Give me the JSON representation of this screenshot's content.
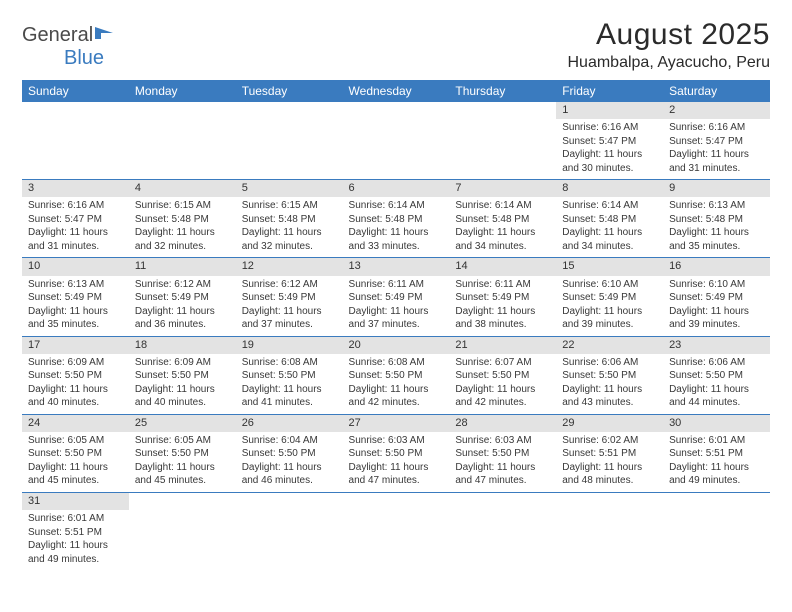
{
  "logo": {
    "text1": "General",
    "text2": "Blue"
  },
  "title": "August 2025",
  "subtitle": "Huambalpa, Ayacucho, Peru",
  "colors": {
    "header_bg": "#3a7bbf",
    "header_fg": "#ffffff",
    "daynum_bg": "#e3e3e3",
    "rule": "#3a7bbf",
    "text": "#383838",
    "logo_gray": "#4a4a4a",
    "logo_blue": "#3a7bbf"
  },
  "weekdays": [
    "Sunday",
    "Monday",
    "Tuesday",
    "Wednesday",
    "Thursday",
    "Friday",
    "Saturday"
  ],
  "weeks": [
    [
      null,
      null,
      null,
      null,
      null,
      {
        "n": "1",
        "sr": "6:16 AM",
        "ss": "5:47 PM",
        "dl": "11 hours and 30 minutes."
      },
      {
        "n": "2",
        "sr": "6:16 AM",
        "ss": "5:47 PM",
        "dl": "11 hours and 31 minutes."
      }
    ],
    [
      {
        "n": "3",
        "sr": "6:16 AM",
        "ss": "5:47 PM",
        "dl": "11 hours and 31 minutes."
      },
      {
        "n": "4",
        "sr": "6:15 AM",
        "ss": "5:48 PM",
        "dl": "11 hours and 32 minutes."
      },
      {
        "n": "5",
        "sr": "6:15 AM",
        "ss": "5:48 PM",
        "dl": "11 hours and 32 minutes."
      },
      {
        "n": "6",
        "sr": "6:14 AM",
        "ss": "5:48 PM",
        "dl": "11 hours and 33 minutes."
      },
      {
        "n": "7",
        "sr": "6:14 AM",
        "ss": "5:48 PM",
        "dl": "11 hours and 34 minutes."
      },
      {
        "n": "8",
        "sr": "6:14 AM",
        "ss": "5:48 PM",
        "dl": "11 hours and 34 minutes."
      },
      {
        "n": "9",
        "sr": "6:13 AM",
        "ss": "5:48 PM",
        "dl": "11 hours and 35 minutes."
      }
    ],
    [
      {
        "n": "10",
        "sr": "6:13 AM",
        "ss": "5:49 PM",
        "dl": "11 hours and 35 minutes."
      },
      {
        "n": "11",
        "sr": "6:12 AM",
        "ss": "5:49 PM",
        "dl": "11 hours and 36 minutes."
      },
      {
        "n": "12",
        "sr": "6:12 AM",
        "ss": "5:49 PM",
        "dl": "11 hours and 37 minutes."
      },
      {
        "n": "13",
        "sr": "6:11 AM",
        "ss": "5:49 PM",
        "dl": "11 hours and 37 minutes."
      },
      {
        "n": "14",
        "sr": "6:11 AM",
        "ss": "5:49 PM",
        "dl": "11 hours and 38 minutes."
      },
      {
        "n": "15",
        "sr": "6:10 AM",
        "ss": "5:49 PM",
        "dl": "11 hours and 39 minutes."
      },
      {
        "n": "16",
        "sr": "6:10 AM",
        "ss": "5:49 PM",
        "dl": "11 hours and 39 minutes."
      }
    ],
    [
      {
        "n": "17",
        "sr": "6:09 AM",
        "ss": "5:50 PM",
        "dl": "11 hours and 40 minutes."
      },
      {
        "n": "18",
        "sr": "6:09 AM",
        "ss": "5:50 PM",
        "dl": "11 hours and 40 minutes."
      },
      {
        "n": "19",
        "sr": "6:08 AM",
        "ss": "5:50 PM",
        "dl": "11 hours and 41 minutes."
      },
      {
        "n": "20",
        "sr": "6:08 AM",
        "ss": "5:50 PM",
        "dl": "11 hours and 42 minutes."
      },
      {
        "n": "21",
        "sr": "6:07 AM",
        "ss": "5:50 PM",
        "dl": "11 hours and 42 minutes."
      },
      {
        "n": "22",
        "sr": "6:06 AM",
        "ss": "5:50 PM",
        "dl": "11 hours and 43 minutes."
      },
      {
        "n": "23",
        "sr": "6:06 AM",
        "ss": "5:50 PM",
        "dl": "11 hours and 44 minutes."
      }
    ],
    [
      {
        "n": "24",
        "sr": "6:05 AM",
        "ss": "5:50 PM",
        "dl": "11 hours and 45 minutes."
      },
      {
        "n": "25",
        "sr": "6:05 AM",
        "ss": "5:50 PM",
        "dl": "11 hours and 45 minutes."
      },
      {
        "n": "26",
        "sr": "6:04 AM",
        "ss": "5:50 PM",
        "dl": "11 hours and 46 minutes."
      },
      {
        "n": "27",
        "sr": "6:03 AM",
        "ss": "5:50 PM",
        "dl": "11 hours and 47 minutes."
      },
      {
        "n": "28",
        "sr": "6:03 AM",
        "ss": "5:50 PM",
        "dl": "11 hours and 47 minutes."
      },
      {
        "n": "29",
        "sr": "6:02 AM",
        "ss": "5:51 PM",
        "dl": "11 hours and 48 minutes."
      },
      {
        "n": "30",
        "sr": "6:01 AM",
        "ss": "5:51 PM",
        "dl": "11 hours and 49 minutes."
      }
    ],
    [
      {
        "n": "31",
        "sr": "6:01 AM",
        "ss": "5:51 PM",
        "dl": "11 hours and 49 minutes."
      },
      null,
      null,
      null,
      null,
      null,
      null
    ]
  ],
  "labels": {
    "sunrise": "Sunrise:",
    "sunset": "Sunset:",
    "daylight": "Daylight:"
  }
}
